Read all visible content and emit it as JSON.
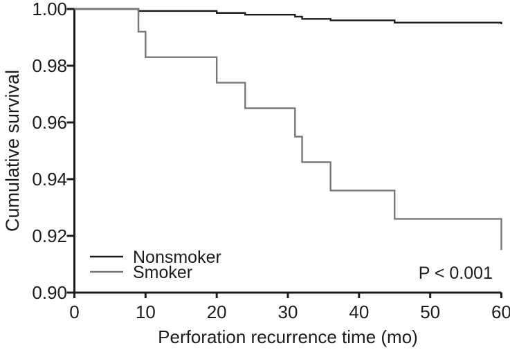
{
  "figure": {
    "background_color": "#ffffff",
    "axis_color": "#1c1c1c",
    "tick_length_y": 11,
    "tick_length_x": 8
  },
  "chart_data": {
    "type": "line",
    "subtype": "kaplan-meier-step-survival",
    "title": "",
    "xlabel": "Perforation recurrence time (mo)",
    "ylabel": "Cumulative survival",
    "annotation": "P < 0.001",
    "xlim": [
      0,
      60
    ],
    "ylim": [
      0.9,
      1.0
    ],
    "grid": false,
    "legend_position": "lower-left-inside",
    "x_ticks": [
      {
        "value": 0,
        "label": "0"
      },
      {
        "value": 10,
        "label": "10"
      },
      {
        "value": 20,
        "label": "20"
      },
      {
        "value": 30,
        "label": "30"
      },
      {
        "value": 40,
        "label": "40"
      },
      {
        "value": 50,
        "label": "50"
      },
      {
        "value": 60,
        "label": "60"
      }
    ],
    "y_ticks": [
      {
        "value": 1.0,
        "label": "1.00"
      },
      {
        "value": 0.98,
        "label": "0.98"
      },
      {
        "value": 0.96,
        "label": "0.96"
      },
      {
        "value": 0.94,
        "label": "0.94"
      },
      {
        "value": 0.92,
        "label": "0.92"
      },
      {
        "value": 0.9,
        "label": "0.90"
      }
    ],
    "series": [
      {
        "name": "Nonsmoker",
        "color": "#1a1a1a",
        "stroke_width": 2.4,
        "start": {
          "t": 0,
          "s": 1.0
        },
        "steps": [
          {
            "t": 9,
            "s": 0.9993
          },
          {
            "t": 20,
            "s": 0.9986
          },
          {
            "t": 24,
            "s": 0.998
          },
          {
            "t": 31,
            "s": 0.9973
          },
          {
            "t": 32,
            "s": 0.9965
          },
          {
            "t": 36,
            "s": 0.996
          },
          {
            "t": 45,
            "s": 0.9952
          },
          {
            "t": 60,
            "s": 0.9946
          }
        ]
      },
      {
        "name": "Smoker",
        "color": "#787878",
        "stroke_width": 2.4,
        "start": {
          "t": 0,
          "s": 1.0
        },
        "steps": [
          {
            "t": 9,
            "s": 0.992
          },
          {
            "t": 10,
            "s": 0.983
          },
          {
            "t": 20,
            "s": 0.974
          },
          {
            "t": 24,
            "s": 0.965
          },
          {
            "t": 31,
            "s": 0.955
          },
          {
            "t": 32,
            "s": 0.946
          },
          {
            "t": 36,
            "s": 0.936
          },
          {
            "t": 45,
            "s": 0.926
          },
          {
            "t": 60,
            "s": 0.915
          }
        ]
      }
    ]
  }
}
